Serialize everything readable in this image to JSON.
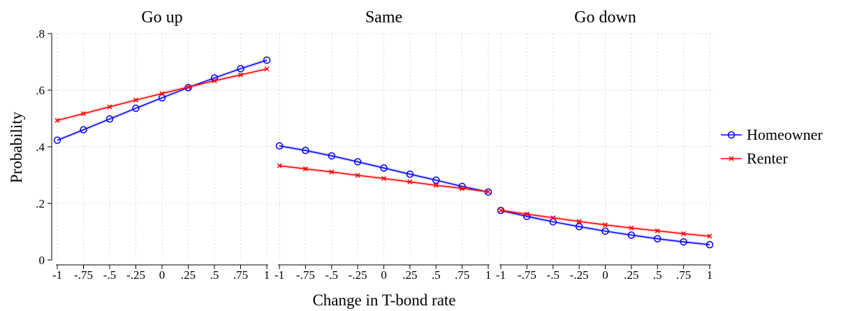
{
  "chart_data": {
    "type": "line",
    "xlabel": "Change in T-bond rate",
    "ylabel": "Probability",
    "x": [
      -1,
      -0.75,
      -0.5,
      -0.25,
      0,
      0.25,
      0.5,
      0.75,
      1
    ],
    "x_tick_labels": [
      "-1",
      "-.75",
      "-.5",
      "-.25",
      "0",
      ".25",
      ".5",
      ".75",
      "1"
    ],
    "ylim": [
      0,
      0.8
    ],
    "y_ticks": [
      0,
      0.2,
      0.4,
      0.6,
      0.8
    ],
    "y_tick_labels": [
      "0",
      ".2",
      ".4",
      ".6",
      ".8"
    ],
    "grid": true,
    "legend_position": "right",
    "series_styles": {
      "Homeowner": {
        "color": "#0000ff",
        "marker": "circle"
      },
      "Renter": {
        "color": "#ff0000",
        "marker": "x"
      }
    },
    "panels": [
      {
        "title": "Go up",
        "series": [
          {
            "name": "Homeowner",
            "values": [
              0.423,
              0.46,
              0.498,
              0.536,
              0.573,
              0.609,
              0.643,
              0.676,
              0.706
            ]
          },
          {
            "name": "Renter",
            "values": [
              0.493,
              0.517,
              0.541,
              0.565,
              0.588,
              0.611,
              0.633,
              0.654,
              0.675
            ]
          }
        ]
      },
      {
        "title": "Same",
        "series": [
          {
            "name": "Homeowner",
            "values": [
              0.403,
              0.387,
              0.368,
              0.347,
              0.325,
              0.303,
              0.282,
              0.26,
              0.24
            ]
          },
          {
            "name": "Renter",
            "values": [
              0.333,
              0.322,
              0.311,
              0.299,
              0.288,
              0.276,
              0.264,
              0.253,
              0.241
            ]
          }
        ]
      },
      {
        "title": "Go down",
        "series": [
          {
            "name": "Homeowner",
            "values": [
              0.175,
              0.154,
              0.135,
              0.118,
              0.102,
              0.088,
              0.075,
              0.064,
              0.054
            ]
          },
          {
            "name": "Renter",
            "values": [
              0.175,
              0.162,
              0.149,
              0.136,
              0.124,
              0.113,
              0.103,
              0.093,
              0.084
            ]
          }
        ]
      }
    ]
  }
}
